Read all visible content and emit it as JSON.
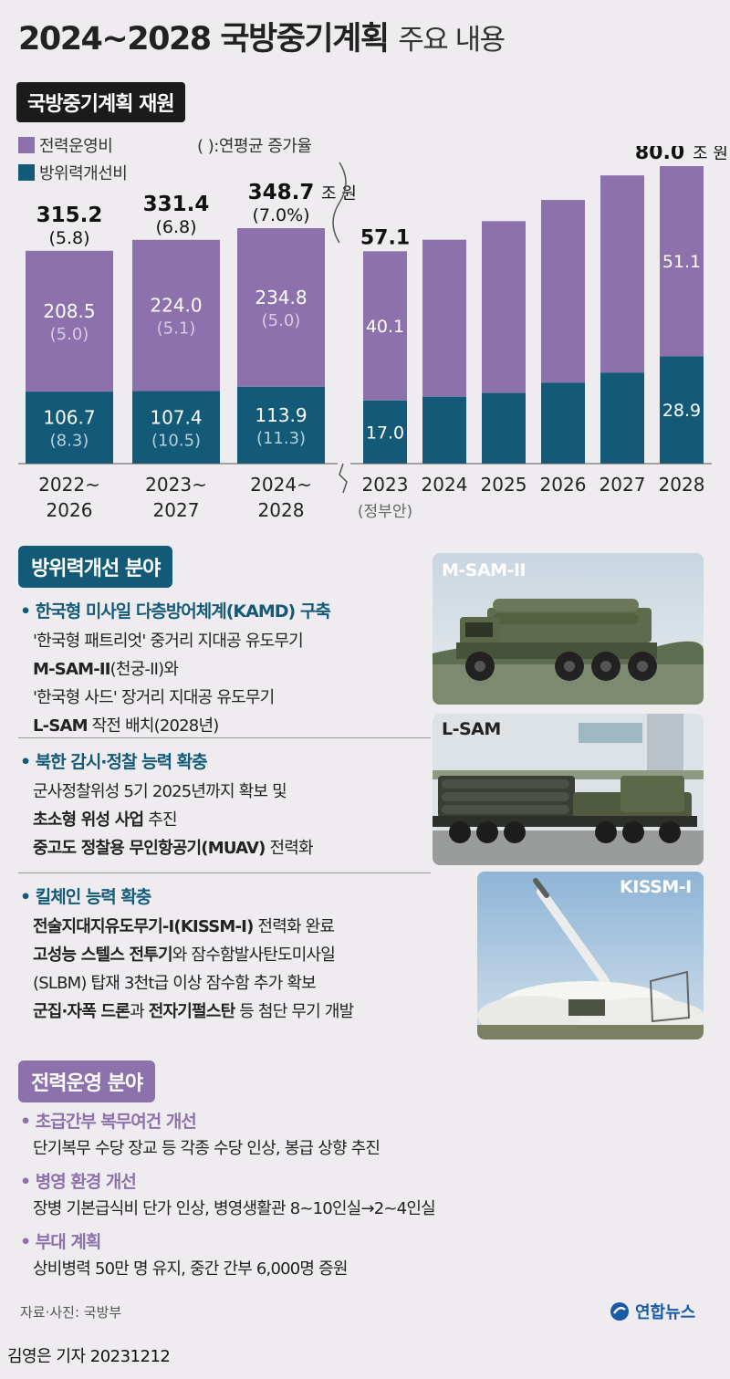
{
  "header": {
    "title": "2024~2028 국방중기계획",
    "title_sub": "주요 내용"
  },
  "finance_section": {
    "label": "국방중기계획 재원"
  },
  "legend": {
    "ops": "전력운영비",
    "def": "방위력개선비",
    "note": "( ):연평균 증가율"
  },
  "colors": {
    "ops": "#8d71ad",
    "def": "#125a78",
    "ops_growth_text": "#d6cbe4",
    "def_growth_text": "#b7cfdc",
    "section_blue": "#125a78",
    "section_purple": "#8d71ad",
    "logo_blue": "#1a5aa6"
  },
  "chart_data": [
    {
      "type": "bar",
      "stacked": true,
      "categories": [
        "2022~\n2026",
        "2023~\n2027",
        "2024~\n2028"
      ],
      "series": [
        {
          "name": "방위력개선비",
          "values": [
            106.7,
            107.4,
            113.9
          ],
          "growth": [
            "(8.3)",
            "(10.5)",
            "(11.3)"
          ]
        },
        {
          "name": "전력운영비",
          "values": [
            208.5,
            224.0,
            234.8
          ],
          "growth": [
            "(5.0)",
            "(5.1)",
            "(5.0)"
          ]
        }
      ],
      "totals": [
        "315.2",
        "331.4",
        "348.7"
      ],
      "total_growth": [
        "(5.8)",
        "(6.8)",
        "(7.0%)"
      ],
      "total_unit": "조 원",
      "ylim": [
        0,
        348.7
      ]
    },
    {
      "type": "bar",
      "stacked": true,
      "categories": [
        "2023",
        "2024",
        "2025",
        "2026",
        "2027",
        "2028"
      ],
      "category_note": "(정부안)",
      "series": [
        {
          "name": "방위력개선비",
          "values": [
            17.0,
            18.0,
            19.0,
            21.8,
            24.5,
            28.9
          ],
          "labels": [
            "17.0",
            "",
            "",
            "",
            "",
            "28.9"
          ]
        },
        {
          "name": "전력운영비",
          "values": [
            40.1,
            42.2,
            46.2,
            49.1,
            53.0,
            51.1
          ],
          "labels": [
            "40.1",
            "",
            "",
            "",
            "",
            "51.1"
          ]
        }
      ],
      "totals": [
        "57.1",
        "",
        "",
        "",
        "",
        "80.0"
      ],
      "total_unit": "조 원",
      "ylim": [
        0,
        80.0
      ]
    }
  ],
  "defense_section": {
    "label": "방위력개선 분야",
    "groups": [
      {
        "bullet": "• 한국형 미사일 다층방어체계(KAMD) 구축",
        "lines": [
          [
            {
              "t": "'한국형 패트리엇' 중거리 지대공 유도무기",
              "b": false
            }
          ],
          [
            {
              "t": "M-SAM-II",
              "b": true
            },
            {
              "t": "(천궁-II)와",
              "b": false
            }
          ],
          [
            {
              "t": "'한국형 사드' 장거리 지대공 유도무기",
              "b": false
            }
          ],
          [
            {
              "t": "L-SAM",
              "b": true
            },
            {
              "t": " 작전 배치(2028년)",
              "b": false
            }
          ]
        ]
      },
      {
        "bullet": "• 북한 감시·정찰 능력 확충",
        "lines": [
          [
            {
              "t": "군사정찰위성 5기 2025년까지 확보 및",
              "b": false
            }
          ],
          [
            {
              "t": "초소형 위성 사업",
              "b": true
            },
            {
              "t": " 추진",
              "b": false
            }
          ],
          [
            {
              "t": "중고도 정찰용 무인항공기(MUAV)",
              "b": true
            },
            {
              "t": " 전력화",
              "b": false
            }
          ]
        ]
      },
      {
        "bullet": "• 킬체인 능력 확충",
        "lines": [
          [
            {
              "t": "전술지대지유도무기-I(KISSM-I)",
              "b": true
            },
            {
              "t": " 전력화 완료",
              "b": false
            }
          ],
          [
            {
              "t": "고성능 스텔스 전투기",
              "b": true
            },
            {
              "t": "와 잠수함발사탄도미사일",
              "b": false
            }
          ],
          [
            {
              "t": "(SLBM) 탑재 3천t급 이상 잠수함 추가 확보",
              "b": false
            }
          ],
          [
            {
              "t": "군집·자폭 드론",
              "b": true
            },
            {
              "t": "과 ",
              "b": false
            },
            {
              "t": "전자기펄스탄",
              "b": true
            },
            {
              "t": " 등 첨단 무기 개발",
              "b": false
            }
          ]
        ]
      }
    ],
    "photos": [
      "M-SAM-II",
      "L-SAM",
      "KISSM-I"
    ]
  },
  "operations_section": {
    "label": "전력운영 분야",
    "items": [
      {
        "bullet": "• 초급간부 복무여건 개선",
        "text": "단기복무 수당 장교 등 각종 수당 인상, 봉급 상향 추진"
      },
      {
        "bullet": "• 병영 환경 개선",
        "text": "장병 기본급식비 단가 인상, 병영생활관 8~10인실→2~4인실"
      },
      {
        "bullet": "• 부대 계획",
        "text": "상비병력 50만 명 유지, 중간 간부 6,000명 증원"
      }
    ]
  },
  "footer": {
    "source": "자료·사진: 국방부",
    "logo": "연합뉴스",
    "reporter": "김영은 기자  20231212"
  }
}
